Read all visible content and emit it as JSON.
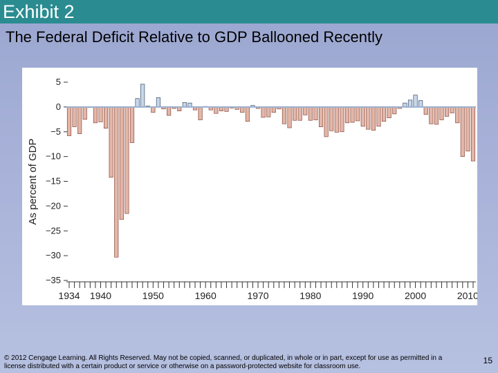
{
  "slide": {
    "title": "Exhibit 2",
    "subtitle": "The Federal Deficit Relative to GDP Ballooned Recently",
    "footer": "© 2012 Cengage Learning. All Rights Reserved. May not be copied, scanned, or duplicated, in whole or in part, except for use as permitted in a license distributed with a certain product or service or otherwise on a password-protected website for classroom use.",
    "page_number": "15"
  },
  "colors": {
    "title_bar": "#2a8c91",
    "deficit_fill": "#e2b6a8",
    "deficit_stroke": "#8a4a3c",
    "surplus_fill": "#c6d8ec",
    "surplus_stroke": "#3c4a62",
    "zero_line": "#9bb0cf"
  },
  "chart_data": {
    "type": "bar",
    "title": "",
    "xlabel": "",
    "ylabel": "As percent of GDP",
    "ylim": [
      -35,
      5
    ],
    "yticks": [
      "5",
      "0",
      "−5",
      "−10",
      "−15",
      "−20",
      "−25",
      "−30",
      "−35"
    ],
    "ytick_values": [
      5,
      0,
      -5,
      -10,
      -15,
      -20,
      -25,
      -30,
      -35
    ],
    "xticks": [
      "1934",
      "1940",
      "1950",
      "1960",
      "1970",
      "1980",
      "1990",
      "2000",
      "2010"
    ],
    "xtick_values": [
      1934,
      1940,
      1950,
      1960,
      1970,
      1980,
      1990,
      2000,
      2010
    ],
    "xlim": [
      1934,
      2011
    ],
    "years": [
      1934,
      1935,
      1936,
      1937,
      1938,
      1939,
      1940,
      1941,
      1942,
      1943,
      1944,
      1945,
      1946,
      1947,
      1948,
      1949,
      1950,
      1951,
      1952,
      1953,
      1954,
      1955,
      1956,
      1957,
      1958,
      1959,
      1960,
      1961,
      1962,
      1963,
      1964,
      1965,
      1966,
      1967,
      1968,
      1969,
      1970,
      1971,
      1972,
      1973,
      1974,
      1975,
      1976,
      1977,
      1978,
      1979,
      1980,
      1981,
      1982,
      1983,
      1984,
      1985,
      1986,
      1987,
      1988,
      1989,
      1990,
      1991,
      1992,
      1993,
      1994,
      1995,
      1996,
      1997,
      1998,
      1999,
      2000,
      2001,
      2002,
      2003,
      2004,
      2005,
      2006,
      2007,
      2008,
      2009,
      2010,
      2011
    ],
    "values": [
      -5.8,
      -4.0,
      -5.4,
      -2.5,
      -0.1,
      -3.2,
      -3.0,
      -4.3,
      -14.2,
      -30.3,
      -22.7,
      -21.5,
      -7.2,
      1.7,
      4.6,
      0.2,
      -1.1,
      1.9,
      -0.4,
      -1.7,
      -0.3,
      -0.8,
      0.9,
      0.8,
      -0.6,
      -2.6,
      0.1,
      -0.6,
      -1.3,
      -0.8,
      -0.9,
      -0.2,
      -0.5,
      -1.1,
      -2.9,
      0.3,
      -0.3,
      -2.1,
      -2.0,
      -1.1,
      -0.4,
      -3.4,
      -4.2,
      -2.7,
      -2.7,
      -1.6,
      -2.7,
      -2.6,
      -4.0,
      -6.0,
      -4.8,
      -5.1,
      -5.0,
      -3.2,
      -3.1,
      -2.8,
      -3.9,
      -4.5,
      -4.7,
      -3.9,
      -2.9,
      -2.2,
      -1.4,
      -0.3,
      0.8,
      1.4,
      2.4,
      1.3,
      -1.5,
      -3.4,
      -3.5,
      -2.6,
      -1.9,
      -1.2,
      -3.2,
      -10.0,
      -8.9,
      -10.9
    ]
  }
}
